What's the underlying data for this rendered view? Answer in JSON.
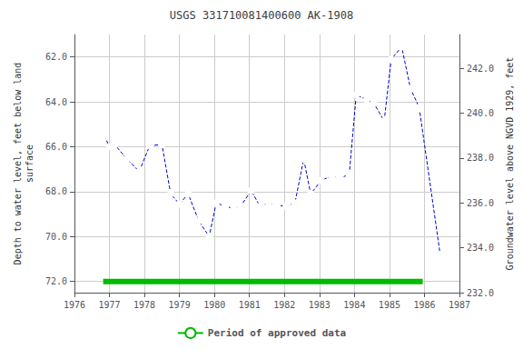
{
  "chart_data": {
    "type": "line",
    "title": "USGS 331710081400600 AK-1908",
    "ylabel": "Depth to water level, feet below land\nsurface",
    "y2label": "Groundwater level above NGVD 1929, feet",
    "xlim": [
      1976,
      1987
    ],
    "xticks": [
      1976,
      1977,
      1978,
      1979,
      1980,
      1981,
      1982,
      1983,
      1984,
      1985,
      1986,
      1987
    ],
    "ylim": [
      72.5,
      61.0
    ],
    "yticks": [
      {
        "value": 62.0,
        "label": "62.0"
      },
      {
        "value": 64.0,
        "label": "64.0"
      },
      {
        "value": 66.0,
        "label": "66.0"
      },
      {
        "value": 68.0,
        "label": "68.0"
      },
      {
        "value": 70.0,
        "label": "70.0"
      },
      {
        "value": 72.0,
        "label": "72.0"
      }
    ],
    "y2lim": [
      232.0,
      243.5
    ],
    "y2ticks": [
      {
        "value": 232.0,
        "label": "232.0"
      },
      {
        "value": 234.0,
        "label": "234.0"
      },
      {
        "value": 236.0,
        "label": "236.0"
      },
      {
        "value": 238.0,
        "label": "238.0"
      },
      {
        "value": 240.0,
        "label": "240.0"
      },
      {
        "value": 242.0,
        "label": "242.0"
      }
    ],
    "grid": true,
    "legend": "bottom",
    "series": [
      {
        "color": "#0000cc",
        "line_style": "dashed",
        "marker": "circle",
        "x": [
          1976.85,
          1977.0,
          1977.15,
          1977.5,
          1977.85,
          1978.15,
          1978.5,
          1978.75,
          1979.0,
          1979.25,
          1979.55,
          1979.85,
          1980.05,
          1980.3,
          1980.55,
          1980.75,
          1981.05,
          1981.3,
          1981.55,
          1981.75,
          1982.05,
          1982.3,
          1982.55,
          1982.75,
          1983.05,
          1983.35,
          1983.55,
          1983.85,
          1984.05,
          1984.35,
          1984.55,
          1984.85,
          1985.05,
          1985.35,
          1985.6,
          1985.85,
          1986.45
        ],
        "values": [
          65.5,
          66.0,
          65.9,
          66.55,
          67.1,
          65.95,
          65.9,
          68.1,
          68.55,
          68.1,
          69.3,
          70.0,
          68.5,
          68.65,
          68.75,
          68.65,
          67.95,
          68.65,
          68.5,
          68.6,
          68.65,
          68.5,
          66.55,
          68.1,
          67.5,
          67.3,
          67.4,
          67.25,
          63.7,
          63.9,
          64.05,
          64.85,
          62.1,
          61.55,
          63.4,
          64.25,
          70.8
        ]
      },
      {
        "name": "Period of approved data",
        "color": "#00bb00",
        "line_style": "solid",
        "x": [
          1976.82,
          1985.95
        ],
        "values": [
          72.0,
          72.0
        ]
      }
    ]
  }
}
